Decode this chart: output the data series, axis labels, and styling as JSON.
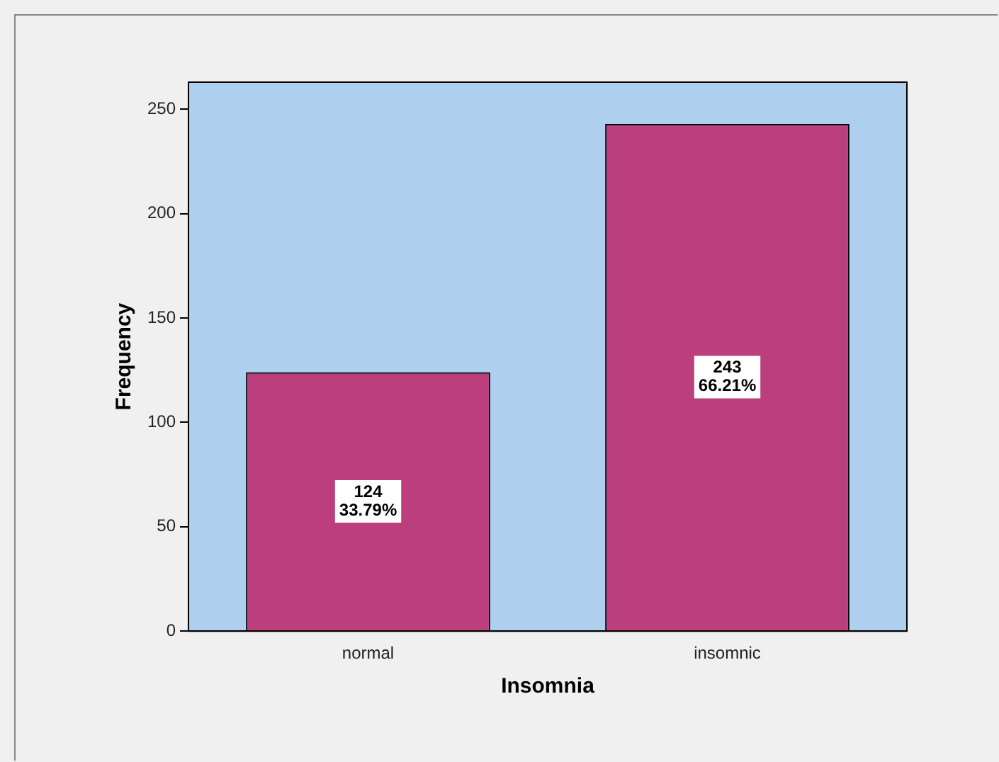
{
  "chart_data": {
    "type": "bar",
    "xlabel": "Insomnia",
    "ylabel": "Frequency",
    "categories": [
      "normal",
      "insomnic"
    ],
    "values": [
      124,
      243
    ],
    "value_labels": [
      "124\n33.79%",
      "243\n66.21%"
    ],
    "color": "#bb3f7d",
    "ylim": [
      0,
      263
    ],
    "yticks": [
      0,
      50,
      100,
      150,
      200,
      250
    ],
    "grid": false,
    "legend": false
  }
}
